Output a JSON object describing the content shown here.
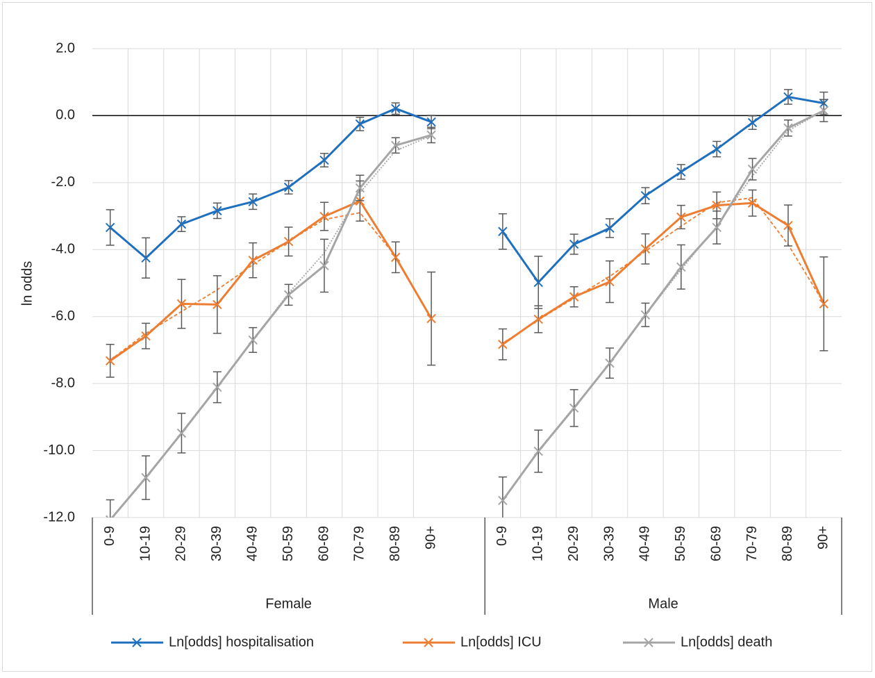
{
  "chart_data": {
    "type": "line",
    "y_label": "ln odds",
    "groups": [
      "Female",
      "Male"
    ],
    "categories": [
      "0-9",
      "10-19",
      "20-29",
      "30-39",
      "40-49",
      "50-59",
      "60-69",
      "70-79",
      "80-89",
      "90+",
      null,
      "0-9",
      "10-19",
      "20-29",
      "30-39",
      "40-49",
      "50-59",
      "60-69",
      "70-79",
      "80-89",
      "90+"
    ],
    "ylim": [
      -12,
      2
    ],
    "yticks": [
      {
        "value": 2,
        "label": "2.0"
      },
      {
        "value": 0,
        "label": "0.0"
      },
      {
        "value": -2,
        "label": "-2.0"
      },
      {
        "value": -4,
        "label": "-4.0"
      },
      {
        "value": -6,
        "label": "-6.0"
      },
      {
        "value": -8,
        "label": "-8.0"
      },
      {
        "value": -10,
        "label": "-10.0"
      },
      {
        "value": -12,
        "label": "-12.0"
      }
    ],
    "grid": true,
    "legend": "bottom",
    "series": [
      {
        "name": "Ln[odds] hospitalisation",
        "color": "#1f6fbf",
        "values": [
          -3.34,
          -4.25,
          -3.24,
          -2.84,
          -2.57,
          -2.14,
          -1.33,
          -0.25,
          0.21,
          -0.19,
          null,
          -3.46,
          -4.98,
          -3.84,
          -3.36,
          -2.39,
          -1.68,
          -1.0,
          -0.21,
          0.56,
          0.37
        ],
        "errors": [
          0.53,
          0.6,
          0.22,
          0.23,
          0.23,
          0.2,
          0.2,
          0.2,
          0.17,
          0.2,
          null,
          0.53,
          0.78,
          0.3,
          0.28,
          0.24,
          0.22,
          0.23,
          0.2,
          0.22,
          0.33
        ]
      },
      {
        "name": "Ln[odds] ICU",
        "color": "#ed7d31",
        "values": [
          -7.32,
          -6.58,
          -5.62,
          -5.64,
          -4.32,
          -3.76,
          -3.01,
          -2.55,
          -4.23,
          -6.06,
          null,
          -6.83,
          -6.08,
          -5.41,
          -4.96,
          -3.98,
          -3.03,
          -2.68,
          -2.61,
          -3.28,
          -5.62
        ],
        "errors": [
          0.49,
          0.38,
          0.73,
          0.86,
          0.52,
          0.43,
          0.42,
          0.6,
          0.46,
          1.39,
          null,
          0.46,
          0.4,
          0.3,
          0.62,
          0.45,
          0.35,
          0.4,
          0.39,
          0.61,
          1.4
        ]
      },
      {
        "name": "Ln[odds] death",
        "color": "#a5a5a5",
        "values": [
          -12.07,
          -10.81,
          -9.48,
          -8.11,
          -6.7,
          -5.35,
          -4.48,
          -2.16,
          -0.89,
          -0.58,
          null,
          -11.49,
          -10.02,
          -8.73,
          -7.39,
          -5.95,
          -4.52,
          -3.34,
          -1.6,
          -0.37,
          0.15
        ],
        "errors": [
          0.6,
          0.65,
          0.59,
          0.46,
          0.37,
          0.31,
          0.79,
          0.38,
          0.23,
          0.23,
          null,
          0.7,
          0.63,
          0.55,
          0.45,
          0.35,
          0.66,
          0.49,
          0.32,
          0.24,
          0.33
        ]
      }
    ],
    "trend_lines": [
      {
        "color": "#ed7d31",
        "dash": "5 3",
        "values": [
          -7.3,
          -6.5,
          -5.85,
          -5.2,
          -4.45,
          -3.75,
          -3.1,
          -2.9,
          -4.2,
          -6.06,
          null,
          -6.8,
          -6.1,
          -5.45,
          -4.8,
          -4.05,
          -3.3,
          -2.6,
          -2.45,
          -3.85,
          -5.6
        ]
      },
      {
        "color": "#a5a5a5",
        "dash": "2 2",
        "values": [
          -12.07,
          -10.8,
          -9.5,
          -8.1,
          -6.7,
          -5.3,
          -4.1,
          -2.3,
          -1.05,
          -0.6,
          null,
          -11.5,
          -10.0,
          -8.7,
          -7.4,
          -5.95,
          -4.6,
          -3.3,
          -1.8,
          -0.45,
          0.15
        ]
      }
    ]
  }
}
